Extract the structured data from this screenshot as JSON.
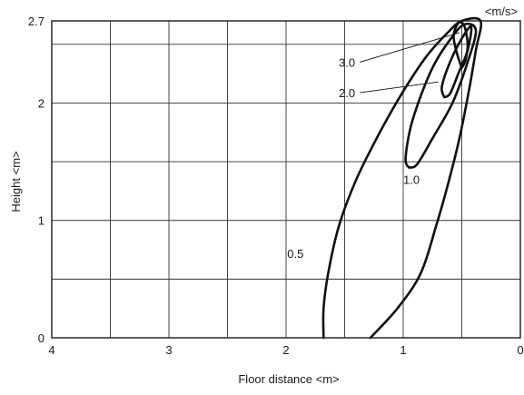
{
  "chart_data": {
    "type": "contour",
    "xlabel": "Floor distance <m>",
    "ylabel": "Height <m>",
    "unit_label": "<m/s>",
    "xlim": [
      4,
      0
    ],
    "ylim": [
      0,
      2.7
    ],
    "x_inverted": true,
    "grid": true,
    "x_ticks": [
      {
        "value": 4,
        "label": "4"
      },
      {
        "value": 3,
        "label": "3"
      },
      {
        "value": 2,
        "label": "2"
      },
      {
        "value": 1,
        "label": "1"
      },
      {
        "value": 0,
        "label": "0"
      }
    ],
    "y_ticks": [
      {
        "value": 0,
        "label": "0"
      },
      {
        "value": 1,
        "label": "1"
      },
      {
        "value": 2,
        "label": "2"
      },
      {
        "value": 2.7,
        "label": "2.7"
      }
    ],
    "contours": [
      {
        "label": "0.5",
        "label_at": [
          1.92,
          0.68
        ],
        "points": [
          [
            1.68,
            0.0
          ],
          [
            1.68,
            0.25
          ],
          [
            1.64,
            0.55
          ],
          [
            1.55,
            0.95
          ],
          [
            1.4,
            1.35
          ],
          [
            1.2,
            1.75
          ],
          [
            1.0,
            2.1
          ],
          [
            0.8,
            2.4
          ],
          [
            0.62,
            2.6
          ],
          [
            0.5,
            2.7
          ],
          [
            0.34,
            2.7
          ],
          [
            0.38,
            2.45
          ],
          [
            0.44,
            2.1
          ],
          [
            0.52,
            1.7
          ],
          [
            0.62,
            1.3
          ],
          [
            0.72,
            0.95
          ],
          [
            0.85,
            0.55
          ],
          [
            1.05,
            0.25
          ],
          [
            1.28,
            0.0
          ]
        ]
      },
      {
        "label": "1.0",
        "label_at": [
          0.93,
          1.31
        ],
        "points": [
          [
            0.95,
            1.45
          ],
          [
            0.98,
            1.52
          ],
          [
            0.94,
            1.78
          ],
          [
            0.85,
            2.06
          ],
          [
            0.74,
            2.32
          ],
          [
            0.6,
            2.54
          ],
          [
            0.48,
            2.67
          ],
          [
            0.38,
            2.62
          ],
          [
            0.45,
            2.35
          ],
          [
            0.58,
            2.0
          ],
          [
            0.75,
            1.7
          ],
          [
            0.88,
            1.48
          ],
          [
            0.95,
            1.45
          ]
        ]
      },
      {
        "label": "2.0",
        "label_at": [
          1.48,
          2.05
        ],
        "pointer_to": [
          0.7,
          2.18
        ],
        "points": [
          [
            0.65,
            2.05
          ],
          [
            0.67,
            2.14
          ],
          [
            0.6,
            2.35
          ],
          [
            0.5,
            2.55
          ],
          [
            0.42,
            2.65
          ],
          [
            0.45,
            2.45
          ],
          [
            0.53,
            2.25
          ],
          [
            0.6,
            2.08
          ],
          [
            0.65,
            2.05
          ]
        ]
      },
      {
        "label": "3.0",
        "label_at": [
          1.48,
          2.31
        ],
        "pointer_to": [
          0.52,
          2.6
        ],
        "points": [
          [
            0.5,
            2.3
          ],
          [
            0.54,
            2.42
          ],
          [
            0.57,
            2.57
          ],
          [
            0.53,
            2.68
          ],
          [
            0.48,
            2.66
          ],
          [
            0.45,
            2.5
          ],
          [
            0.47,
            2.36
          ],
          [
            0.5,
            2.3
          ]
        ]
      }
    ]
  }
}
